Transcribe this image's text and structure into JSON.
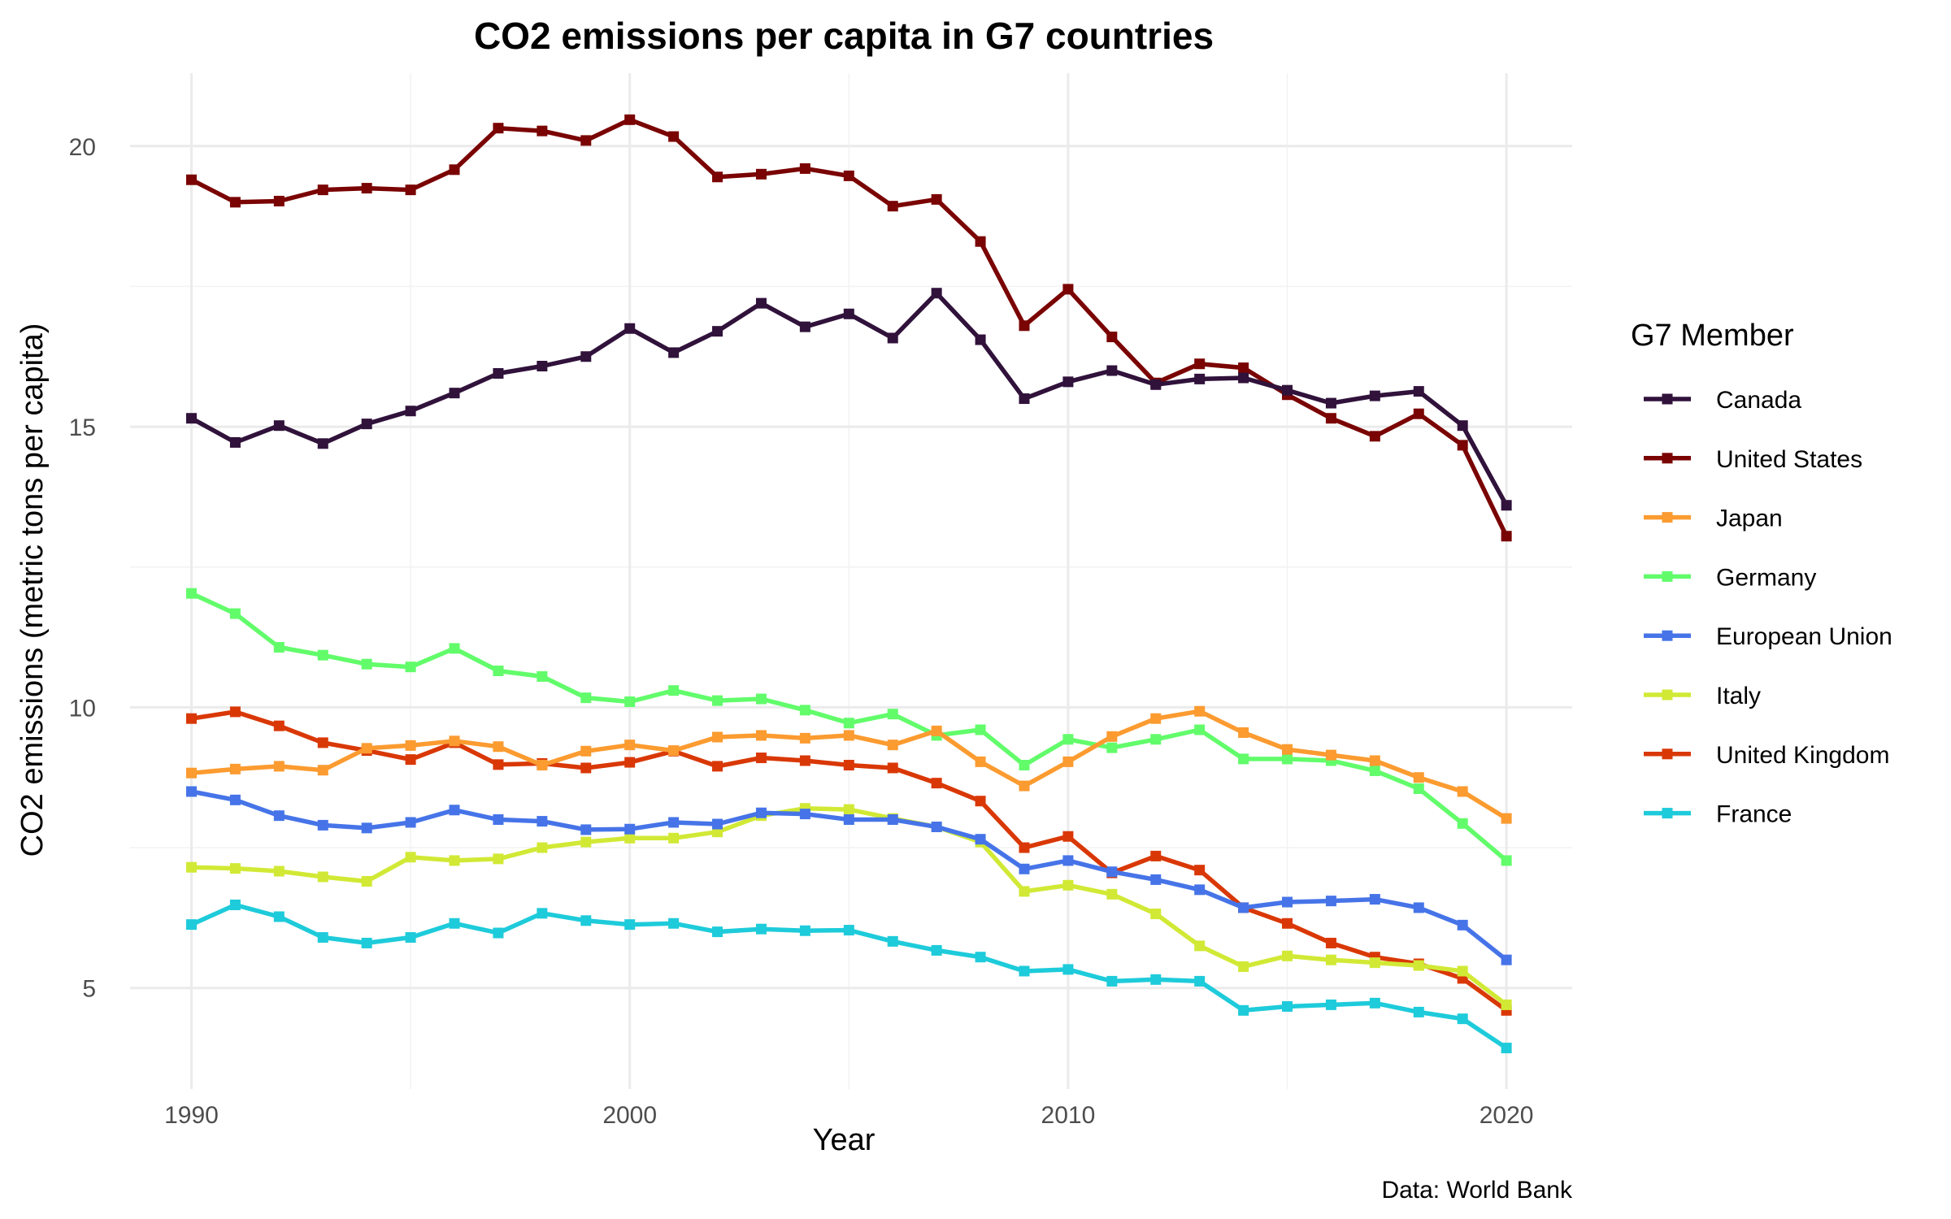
{
  "chart_data": {
    "type": "line",
    "title": "CO2 emissions per capita in G7 countries",
    "xlabel": "Year",
    "ylabel": "CO2 emissions (metric tons per capita)",
    "caption": "Data: World Bank",
    "legend_title": "G7 Member",
    "legend_position": "right",
    "grid": true,
    "xlim": [
      1988.6,
      2021.5
    ],
    "ylim": [
      3.2,
      21.3
    ],
    "x_ticks": [
      1990,
      2000,
      2010,
      2020
    ],
    "y_ticks": [
      5,
      10,
      15,
      20
    ],
    "x": [
      1990,
      1991,
      1992,
      1993,
      1994,
      1995,
      1996,
      1997,
      1998,
      1999,
      2000,
      2001,
      2002,
      2003,
      2004,
      2005,
      2006,
      2007,
      2008,
      2009,
      2010,
      2011,
      2012,
      2013,
      2014,
      2015,
      2016,
      2017,
      2018,
      2019,
      2020
    ],
    "series": [
      {
        "name": "Canada",
        "color": "#30123b",
        "values": [
          15.15,
          14.72,
          15.02,
          14.7,
          15.05,
          15.28,
          15.6,
          15.95,
          16.08,
          16.25,
          16.75,
          16.32,
          16.7,
          17.2,
          16.78,
          17.01,
          16.58,
          17.38,
          16.55,
          15.5,
          15.8,
          16.0,
          15.75,
          15.85,
          15.87,
          15.65,
          15.42,
          15.55,
          15.63,
          15.02,
          13.6
        ]
      },
      {
        "name": "United States",
        "color": "#7a0403",
        "values": [
          19.4,
          19.0,
          19.02,
          19.22,
          19.25,
          19.22,
          19.58,
          20.32,
          20.27,
          20.1,
          20.47,
          20.17,
          19.45,
          19.5,
          19.6,
          19.47,
          18.93,
          19.05,
          18.3,
          16.8,
          17.45,
          16.6,
          15.78,
          16.12,
          16.05,
          15.57,
          15.15,
          14.83,
          15.23,
          14.67,
          13.05
        ]
      },
      {
        "name": "Japan",
        "color": "#fb9b30",
        "values": [
          8.83,
          8.9,
          8.95,
          8.88,
          9.27,
          9.32,
          9.4,
          9.3,
          8.97,
          9.22,
          9.33,
          9.23,
          9.47,
          9.5,
          9.45,
          9.5,
          9.33,
          9.58,
          9.03,
          8.6,
          9.03,
          9.48,
          9.8,
          9.93,
          9.55,
          9.25,
          9.15,
          9.05,
          8.75,
          8.5,
          8.02
        ]
      },
      {
        "name": "Germany",
        "color": "#62fc6b",
        "values": [
          12.03,
          11.67,
          11.07,
          10.93,
          10.77,
          10.72,
          11.05,
          10.65,
          10.55,
          10.17,
          10.1,
          10.3,
          10.12,
          10.15,
          9.95,
          9.72,
          9.88,
          9.5,
          9.6,
          8.97,
          9.43,
          9.28,
          9.43,
          9.6,
          9.08,
          9.08,
          9.05,
          8.87,
          8.55,
          7.93,
          7.27
        ]
      },
      {
        "name": "European Union",
        "color": "#4674e8",
        "values": [
          8.5,
          8.35,
          8.07,
          7.9,
          7.85,
          7.95,
          8.17,
          8.0,
          7.97,
          7.82,
          7.83,
          7.95,
          7.92,
          8.12,
          8.1,
          8.0,
          8.0,
          7.87,
          7.65,
          7.12,
          7.27,
          7.07,
          6.93,
          6.75,
          6.43,
          6.53,
          6.55,
          6.58,
          6.43,
          6.12,
          5.5
        ]
      },
      {
        "name": "Italy",
        "color": "#d1e935",
        "values": [
          7.15,
          7.13,
          7.08,
          6.98,
          6.9,
          7.33,
          7.27,
          7.3,
          7.5,
          7.6,
          7.67,
          7.67,
          7.78,
          8.07,
          8.2,
          8.18,
          8.02,
          7.87,
          7.6,
          6.72,
          6.83,
          6.67,
          6.32,
          5.75,
          5.38,
          5.57,
          5.5,
          5.45,
          5.4,
          5.3,
          4.7
        ]
      },
      {
        "name": "United Kingdom",
        "color": "#d93806",
        "values": [
          9.8,
          9.92,
          9.67,
          9.37,
          9.23,
          9.07,
          9.37,
          8.98,
          9.0,
          8.92,
          9.02,
          9.22,
          8.95,
          9.1,
          9.05,
          8.97,
          8.92,
          8.65,
          8.33,
          7.5,
          7.7,
          7.05,
          7.35,
          7.1,
          6.43,
          6.15,
          5.8,
          5.55,
          5.43,
          5.17,
          4.6
        ]
      },
      {
        "name": "France",
        "color": "#1ecbda",
        "values": [
          6.13,
          6.48,
          6.27,
          5.9,
          5.8,
          5.9,
          6.15,
          5.98,
          6.33,
          6.2,
          6.13,
          6.15,
          6.0,
          6.05,
          6.02,
          6.03,
          5.83,
          5.67,
          5.55,
          5.3,
          5.33,
          5.12,
          5.15,
          5.12,
          4.6,
          4.67,
          4.7,
          4.73,
          4.57,
          4.45,
          3.93
        ]
      }
    ]
  }
}
